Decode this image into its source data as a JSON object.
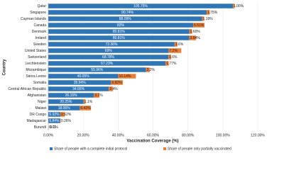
{
  "chart_data": {
    "type": "stacked-barh",
    "x_label": "Vaccination Coverage (%)",
    "y_label": "Country",
    "categories": [
      "Qatar",
      "Singapore",
      "Cayman Islands",
      "Canada",
      "Denmark",
      "Ireland",
      "Sweden",
      "United States",
      "Switzerland",
      "Liechtenstein",
      "Mozambique",
      "Sierra Leone",
      "Somalia",
      "Central African Republic",
      "Afghanistan",
      "Niger",
      "Malawi",
      "DR Congo",
      "Madagascar",
      "Burundi"
    ],
    "series": [
      {
        "name": "Share of people with a complete initial protocol",
        "color": "#2e75b6",
        "values": [
          105.75,
          90.74,
          88.09,
          83,
          80.81,
          80.81,
          72.36,
          69,
          68.78,
          67.23,
          55.96,
          40.05,
          35.94,
          34.66,
          26.15,
          20.25,
          18.06,
          6.92,
          6.84,
          0.1
        ],
        "value_labels": [
          "105.75%",
          "90.74%",
          "88.09%",
          "83%",
          "80.81%",
          "80.81%",
          "72.36%",
          "69%",
          "68.78%",
          "67.23%",
          "55.96%",
          "40.05%",
          "35.94%",
          "34.66%",
          "26.15%",
          "20.25%",
          "18.06%",
          "6.92%",
          "6.84%",
          "0.1%"
        ]
      },
      {
        "name": "Share of people only partially vaccinated",
        "color": "#ed7d31",
        "values": [
          1,
          1.75,
          1.19,
          6.51,
          1.6,
          3.84,
          1.6,
          7.2,
          1.6,
          1.77,
          2.2,
          10.14,
          6.82,
          2.4,
          3.1,
          1.1,
          6.42,
          2.62,
          0.26,
          0.01
        ],
        "value_labels": [
          "1.00%",
          "1.75%",
          "1.19%",
          "6.51%",
          "1.60%",
          "3.84%",
          "1.6%",
          "7.2%",
          "1.6%",
          "1.77%",
          "2.2%",
          "10.14%",
          "6.82%",
          "2.4%",
          "3.1%",
          "1.1%",
          "6.42%",
          "2.62%",
          "0.26%",
          "0.01"
        ]
      }
    ],
    "xlim": [
      0,
      120
    ],
    "xticks": [
      {
        "value": 0,
        "label": "0.00%"
      },
      {
        "value": 20,
        "label": "20.00%"
      },
      {
        "value": 40,
        "label": "40.00%"
      },
      {
        "value": 60,
        "label": "60.00%"
      },
      {
        "value": 80,
        "label": "80.00%"
      },
      {
        "value": 100,
        "label": "100.00%"
      },
      {
        "value": 120,
        "label": "120.00%"
      }
    ],
    "legend": "bottom"
  }
}
